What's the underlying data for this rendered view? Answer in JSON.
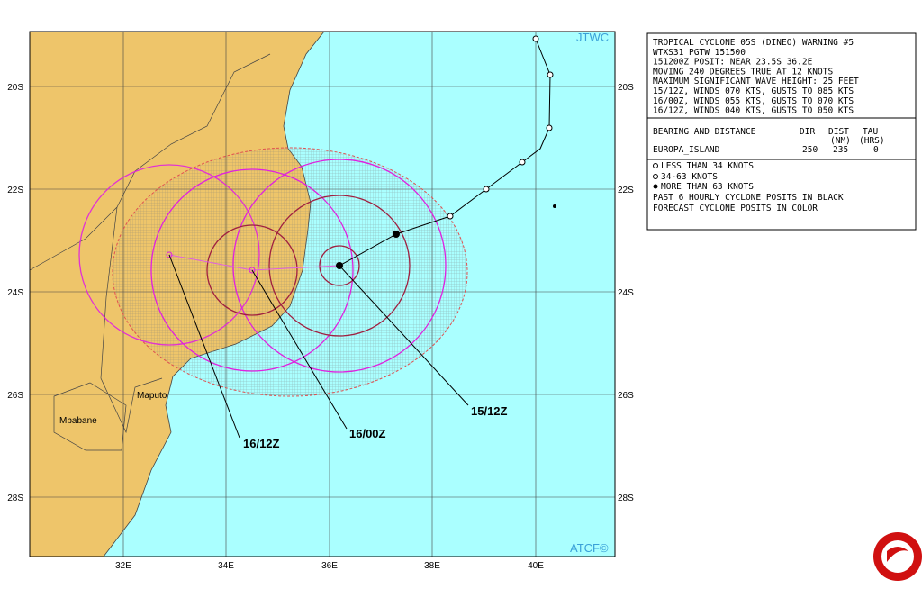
{
  "map": {
    "agency_top": "JTWC",
    "agency_bottom": "ATCF©",
    "lat_labels": [
      "20S",
      "22S",
      "24S",
      "26S",
      "28S"
    ],
    "lon_labels": [
      "32E",
      "34E",
      "36E",
      "38E",
      "40E"
    ],
    "places": [
      "Maputo",
      "Mbabane"
    ],
    "forecast_labels": [
      "15/12Z",
      "16/00Z",
      "16/12Z"
    ]
  },
  "warning": {
    "lines": [
      "TROPICAL CYCLONE 05S (DINEO) WARNING #5",
      "WTXS31 PGTW 151500",
      "151200Z POSIT: NEAR 23.5S 36.2E",
      "MOVING 240 DEGREES TRUE AT 12 KNOTS",
      "MAXIMUM SIGNIFICANT WAVE HEIGHT: 25 FEET",
      "15/12Z, WINDS 070 KTS, GUSTS TO 085 KTS",
      "16/00Z, WINDS 055 KTS, GUSTS TO 070 KTS",
      "16/12Z, WINDS 040 KTS, GUSTS TO 050 KTS"
    ],
    "table": {
      "headers": [
        "BEARING AND DISTANCE",
        "DIR",
        "DIST",
        "(NM)",
        "TAU",
        "(HRS)"
      ],
      "row": [
        "EUROPA_ISLAND",
        "250",
        "235",
        "0"
      ]
    }
  },
  "legend": [
    "LESS THAN 34 KNOTS",
    "34-63 KNOTS",
    "MORE THAN 63 KNOTS",
    "PAST 6 HOURLY CYCLONE POSITS IN BLACK",
    "FORECAST CYCLONE POSITS IN COLOR"
  ]
}
